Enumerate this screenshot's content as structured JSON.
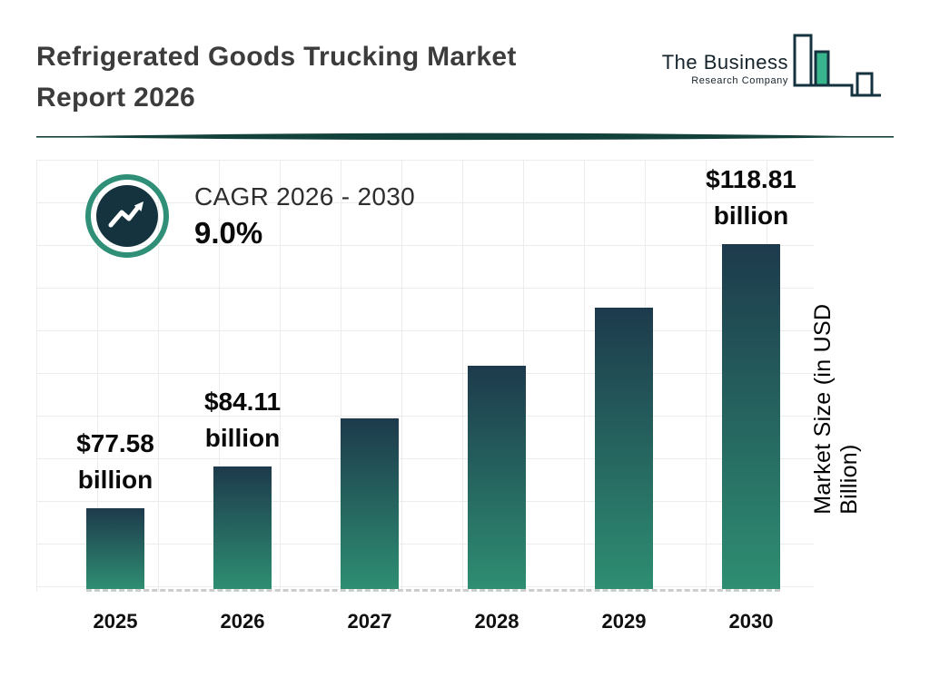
{
  "header": {
    "title_line1": "Refrigerated Goods Trucking Market",
    "title_line2": "Report 2026",
    "logo": {
      "line1": "The Business",
      "line2": "Research Company"
    }
  },
  "cagr": {
    "label": "CAGR 2026 - 2030",
    "value": "9.0%"
  },
  "chart_data": {
    "type": "bar",
    "title": "Refrigerated Goods Trucking Market Report 2026",
    "categories": [
      "2025",
      "2026",
      "2027",
      "2028",
      "2029",
      "2030"
    ],
    "values": [
      77.58,
      84.11,
      91.7,
      99.9,
      108.9,
      118.81
    ],
    "value_labels": [
      {
        "category": "2025",
        "line1": "$77.58",
        "line2": "billion"
      },
      {
        "category": "2026",
        "line1": "$84.11",
        "line2": "billion"
      },
      {
        "category": "2030",
        "line1": "$118.81",
        "line2": "billion"
      }
    ],
    "xlabel": "",
    "ylabel": "Market Size (in USD Billion)",
    "ylim": [
      65,
      132
    ],
    "grid": true,
    "legend": false,
    "bar_color_top": "#1d3a4c",
    "bar_color_bottom": "#2e8e72"
  },
  "colors": {
    "accent_teal": "#2e8e72",
    "ring_teal": "#2f9077",
    "dark_navy": "#15333f",
    "title_text": "#3c3c3c",
    "divider": "#12423a",
    "grid_line": "#ececec"
  }
}
